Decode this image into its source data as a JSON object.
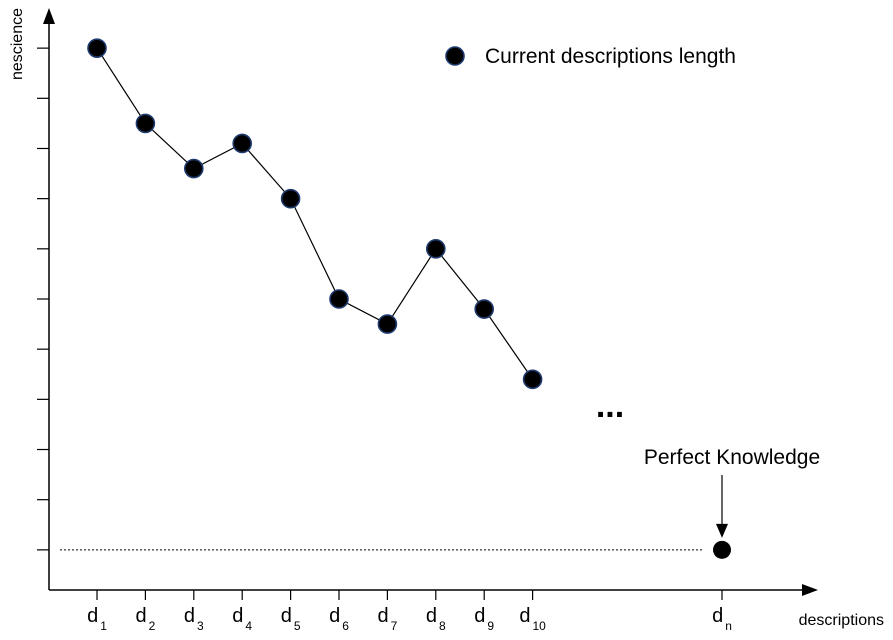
{
  "chart_data": {
    "type": "line",
    "xlabel": "descriptions",
    "ylabel": "nescience",
    "legend": {
      "label": "Current descriptions length",
      "placement": "top-right"
    },
    "categories": [
      {
        "main": "d",
        "sub": "1"
      },
      {
        "main": "d",
        "sub": "2"
      },
      {
        "main": "d",
        "sub": "3"
      },
      {
        "main": "d",
        "sub": "4"
      },
      {
        "main": "d",
        "sub": "5"
      },
      {
        "main": "d",
        "sub": "6"
      },
      {
        "main": "d",
        "sub": "7"
      },
      {
        "main": "d",
        "sub": "8"
      },
      {
        "main": "d",
        "sub": "9"
      },
      {
        "main": "d",
        "sub": "10"
      }
    ],
    "final_category": {
      "main": "d",
      "sub": "n"
    },
    "values": [
      10.0,
      8.5,
      7.6,
      8.1,
      7.0,
      5.0,
      4.5,
      6.0,
      4.8,
      3.4
    ],
    "final_value": 0,
    "ylim": [
      -0.8,
      10.8
    ],
    "y_tick_count": 11,
    "ellipsis": "...",
    "annotation": "Perfect Knowledge",
    "colors": {
      "marker_fill": "#000000",
      "marker_edge": "#1f3a6e"
    }
  }
}
